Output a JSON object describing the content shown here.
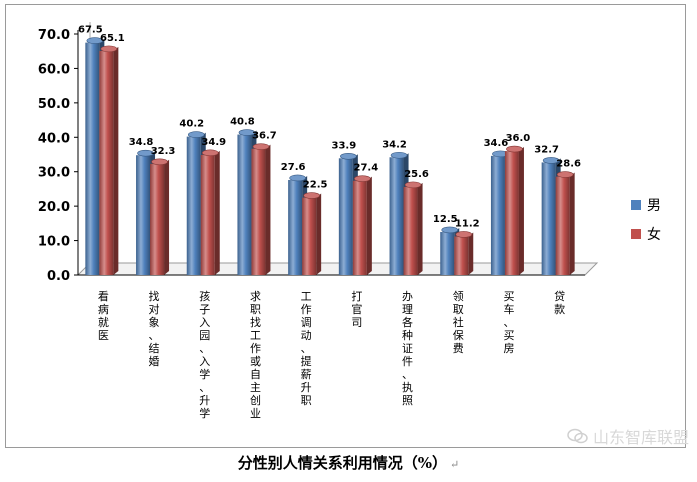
{
  "chart_data": {
    "type": "bar",
    "title": "分性别人情关系利用情况（%）",
    "xlabel": "",
    "ylabel": "",
    "ylim": [
      0,
      70
    ],
    "y_ticks": [
      "0.0",
      "10.0",
      "20.0",
      "30.0",
      "40.0",
      "50.0",
      "60.0",
      "70.0"
    ],
    "grid": false,
    "legend_position": "right",
    "categories": [
      "看病就医",
      "找对象、结婚",
      "孩子入园、入学、升学",
      "求职找工作或自主创业",
      "工作调动、提薪升职",
      "打官司",
      "办理各种证件、执照",
      "领取社保费",
      "买车、买房",
      "贷款"
    ],
    "series": [
      {
        "name": "男",
        "color": "#4f81bd",
        "values": [
          67.5,
          34.8,
          40.2,
          40.8,
          27.6,
          33.9,
          34.2,
          12.5,
          34.6,
          32.7
        ]
      },
      {
        "name": "女",
        "color": "#c0504d",
        "values": [
          65.1,
          32.3,
          34.9,
          36.7,
          22.5,
          27.4,
          25.6,
          11.2,
          36.0,
          28.6
        ]
      }
    ]
  },
  "caption": {
    "title": "分性别人情关系利用情况（%）",
    "mark": "↵"
  },
  "watermark": {
    "text": "山东智库联盟",
    "icon": "wechat-icon"
  }
}
